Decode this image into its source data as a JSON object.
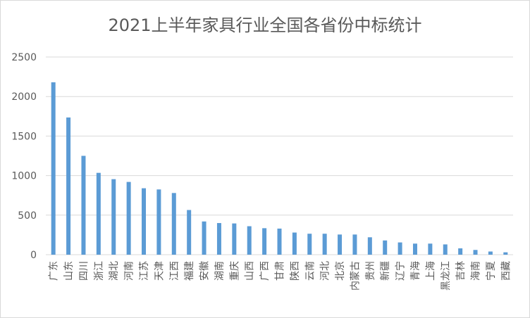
{
  "chart_data": {
    "type": "bar",
    "title": "2021上半年家具行业全国各省份中标统计",
    "xlabel": "",
    "ylabel": "",
    "ylim": [
      0,
      2500
    ],
    "yticks": [
      0,
      500,
      1000,
      1500,
      2000,
      2500
    ],
    "grid": true,
    "legend": "none",
    "bar_color": "#5b9bd5",
    "grid_color": "#d9d9d9",
    "text_color": "#595959",
    "categories": [
      "广东",
      "山东",
      "四川",
      "浙江",
      "湖北",
      "河南",
      "江苏",
      "天津",
      "江西",
      "福建",
      "安徽",
      "湖南",
      "重庆",
      "山西",
      "广西",
      "甘肃",
      "陕西",
      "云南",
      "河北",
      "北京",
      "内蒙古",
      "贵州",
      "新疆",
      "辽宁",
      "青海",
      "上海",
      "黑龙江",
      "吉林",
      "海南",
      "宁夏",
      "西藏"
    ],
    "values": [
      2180,
      1735,
      1250,
      1035,
      955,
      920,
      840,
      825,
      780,
      565,
      420,
      400,
      395,
      360,
      335,
      330,
      280,
      265,
      265,
      255,
      255,
      220,
      180,
      155,
      140,
      140,
      130,
      80,
      60,
      40,
      30
    ]
  }
}
